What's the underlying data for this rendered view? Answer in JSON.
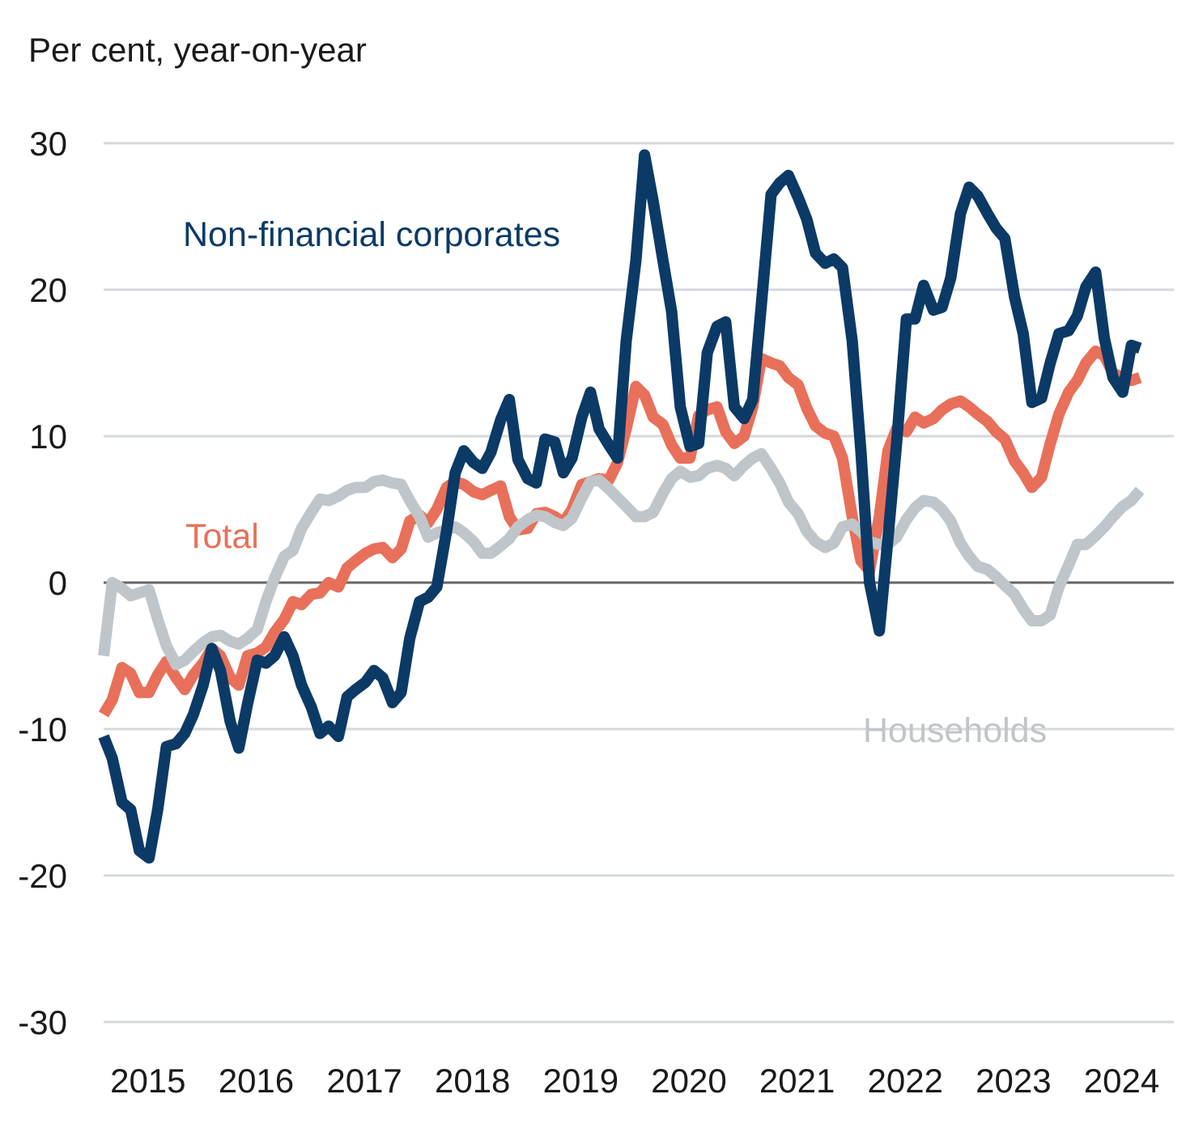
{
  "chart_data": {
    "type": "line",
    "title": "",
    "ylabel": "Per cent, year-on-year",
    "xlabel": "",
    "ylim": [
      -30,
      30
    ],
    "yticks": [
      30,
      20,
      10,
      0,
      -10,
      -20,
      -30
    ],
    "xlim": [
      2015,
      2024.99
    ],
    "xticks": [
      "2015",
      "2016",
      "2017",
      "2018",
      "2019",
      "2020",
      "2021",
      "2022",
      "2023",
      "2024"
    ],
    "grid": true,
    "legend": "inline labels",
    "series": [
      {
        "name": "Non-financial corporates",
        "color": "#0b3a66",
        "x": [
          2015.0,
          2015.08,
          2015.17,
          2015.25,
          2015.33,
          2015.42,
          2015.5,
          2015.58,
          2015.67,
          2015.75,
          2015.83,
          2015.92,
          2016.0,
          2016.08,
          2016.17,
          2016.25,
          2016.33,
          2016.42,
          2016.5,
          2016.58,
          2016.67,
          2016.75,
          2016.83,
          2016.92,
          2017.0,
          2017.08,
          2017.17,
          2017.25,
          2017.33,
          2017.42,
          2017.5,
          2017.58,
          2017.67,
          2017.75,
          2017.83,
          2017.92,
          2018.0,
          2018.08,
          2018.17,
          2018.25,
          2018.33,
          2018.42,
          2018.5,
          2018.58,
          2018.67,
          2018.75,
          2018.83,
          2018.92,
          2019.0,
          2019.08,
          2019.17,
          2019.25,
          2019.33,
          2019.42,
          2019.5,
          2019.58,
          2019.67,
          2019.75,
          2019.83,
          2019.92,
          2020.0,
          2020.08,
          2020.17,
          2020.25,
          2020.33,
          2020.42,
          2020.5,
          2020.58,
          2020.67,
          2020.75,
          2020.83,
          2020.92,
          2021.0,
          2021.08,
          2021.17,
          2021.25,
          2021.33,
          2021.42,
          2021.5,
          2021.58,
          2021.67,
          2021.75,
          2021.83,
          2021.92,
          2022.0,
          2022.08,
          2022.17,
          2022.25,
          2022.33,
          2022.42,
          2022.5,
          2022.58,
          2022.67,
          2022.75,
          2022.83,
          2022.92,
          2023.0,
          2023.08,
          2023.17,
          2023.25,
          2023.33,
          2023.42,
          2023.5,
          2023.58,
          2023.67,
          2023.75,
          2023.83,
          2023.92,
          2024.0,
          2024.08,
          2024.17,
          2024.25,
          2024.33,
          2024.42,
          2024.5,
          2024.58
        ],
        "values": [
          -10.5,
          -12,
          -15,
          -15.5,
          -18.3,
          -18.8,
          -15.5,
          -11.2,
          -11,
          -10.3,
          -9,
          -7,
          -4.5,
          -6,
          -9.5,
          -11.3,
          -8.3,
          -5.3,
          -5.5,
          -5,
          -3.7,
          -5,
          -7,
          -8.5,
          -10.3,
          -9.8,
          -10.5,
          -7.8,
          -7.3,
          -6.8,
          -6.0,
          -6.5,
          -8.2,
          -7.5,
          -3.8,
          -1.3,
          -1,
          -0.3,
          3.5,
          7.5,
          9.0,
          8.2,
          7.8,
          8.9,
          11.1,
          12.5,
          8.4,
          7.1,
          6.8,
          9.8,
          9.6,
          7.5,
          8.5,
          11.3,
          13.0,
          10.5,
          9.4,
          8.5,
          16.5,
          22.0,
          29.2,
          26,
          22,
          18.5,
          12.0,
          9.3,
          9.5,
          15.7,
          17.5,
          17.8,
          12.0,
          11.2,
          12.5,
          19,
          26.5,
          27.3,
          27.8,
          26.3,
          24.8,
          22.5,
          21.8,
          22.1,
          21.5,
          16.5,
          9,
          0,
          -3.3,
          3,
          9.5,
          18,
          18,
          20.3,
          18.6,
          18.8,
          20.8,
          25.2,
          27,
          26.4,
          25.2,
          24.2,
          23.5,
          19.5,
          17,
          12.3,
          12.6,
          15.0,
          17.0,
          17.2,
          18.2,
          20.2,
          21.2,
          16.7,
          14.0,
          13.0,
          16.2,
          16.0
        ]
      },
      {
        "name": "Total",
        "color": "#e8705a",
        "x": [
          2015.0,
          2015.08,
          2015.17,
          2015.25,
          2015.33,
          2015.42,
          2015.5,
          2015.58,
          2015.67,
          2015.75,
          2015.83,
          2015.92,
          2016.0,
          2016.08,
          2016.17,
          2016.25,
          2016.33,
          2016.42,
          2016.5,
          2016.58,
          2016.67,
          2016.75,
          2016.83,
          2016.92,
          2017.0,
          2017.08,
          2017.17,
          2017.25,
          2017.33,
          2017.42,
          2017.5,
          2017.58,
          2017.67,
          2017.75,
          2017.83,
          2017.92,
          2018.0,
          2018.08,
          2018.17,
          2018.25,
          2018.33,
          2018.42,
          2018.5,
          2018.58,
          2018.67,
          2018.75,
          2018.83,
          2018.92,
          2019.0,
          2019.08,
          2019.17,
          2019.25,
          2019.33,
          2019.42,
          2019.5,
          2019.58,
          2019.67,
          2019.75,
          2019.83,
          2019.92,
          2020.0,
          2020.08,
          2020.17,
          2020.25,
          2020.33,
          2020.42,
          2020.5,
          2020.58,
          2020.67,
          2020.75,
          2020.83,
          2020.92,
          2021.0,
          2021.08,
          2021.17,
          2021.25,
          2021.33,
          2021.42,
          2021.5,
          2021.58,
          2021.67,
          2021.75,
          2021.83,
          2021.92,
          2022.0,
          2022.08,
          2022.17,
          2022.25,
          2022.33,
          2022.42,
          2022.5,
          2022.58,
          2022.67,
          2022.75,
          2022.83,
          2022.92,
          2023.0,
          2023.08,
          2023.17,
          2023.25,
          2023.33,
          2023.42,
          2023.5,
          2023.58,
          2023.67,
          2023.75,
          2023.83,
          2023.92,
          2024.0,
          2024.08,
          2024.17,
          2024.25,
          2024.33,
          2024.42,
          2024.5,
          2024.58
        ],
        "values": [
          -9,
          -8,
          -5.8,
          -6.2,
          -7.5,
          -7.5,
          -6.3,
          -5.4,
          -6.5,
          -7.3,
          -6.3,
          -5.5,
          -4.5,
          -5,
          -6.5,
          -7,
          -5,
          -4.8,
          -4.4,
          -3.4,
          -2.5,
          -1.3,
          -1.5,
          -0.8,
          -0.7,
          0.0,
          -0.3,
          1,
          1.5,
          2,
          2.3,
          2.4,
          1.7,
          2.3,
          4.2,
          4.6,
          4.1,
          5,
          6.5,
          6.9,
          6.7,
          6.2,
          6.0,
          6.3,
          6.6,
          4.5,
          3.6,
          3.7,
          4.7,
          4.8,
          4.5,
          4.1,
          5,
          6.7,
          6.9,
          7.1,
          7,
          8.2,
          10.5,
          13.4,
          12.8,
          11.3,
          10.8,
          9.4,
          8.5,
          8.5,
          11.4,
          11.8,
          12.0,
          10.3,
          9.5,
          10.0,
          12,
          15.3,
          15.0,
          14.8,
          14.0,
          13.5,
          11.9,
          10.7,
          10.2,
          10.0,
          8.5,
          4.5,
          1.5,
          0.8,
          4.5,
          9,
          10.5,
          10.3,
          11.3,
          10.9,
          11.2,
          11.8,
          12.2,
          12.4,
          12.0,
          11.5,
          11.0,
          10.3,
          9.8,
          8.3,
          7.5,
          6.5,
          7.2,
          9.5,
          11.5,
          13.0,
          13.8,
          15.0,
          15.8,
          15.5,
          14.3,
          14.0,
          13.8,
          14.0
        ]
      },
      {
        "name": "Households",
        "color": "#bfc5c9",
        "x": [
          2015.0,
          2015.08,
          2015.17,
          2015.25,
          2015.33,
          2015.42,
          2015.5,
          2015.58,
          2015.67,
          2015.75,
          2015.83,
          2015.92,
          2016.0,
          2016.08,
          2016.17,
          2016.25,
          2016.33,
          2016.42,
          2016.5,
          2016.58,
          2016.67,
          2016.75,
          2016.83,
          2016.92,
          2017.0,
          2017.08,
          2017.17,
          2017.25,
          2017.33,
          2017.42,
          2017.5,
          2017.58,
          2017.67,
          2017.75,
          2017.83,
          2017.92,
          2018.0,
          2018.08,
          2018.17,
          2018.25,
          2018.33,
          2018.42,
          2018.5,
          2018.58,
          2018.67,
          2018.75,
          2018.83,
          2018.92,
          2019.0,
          2019.08,
          2019.17,
          2019.25,
          2019.33,
          2019.42,
          2019.5,
          2019.58,
          2019.67,
          2019.75,
          2019.83,
          2019.92,
          2020.0,
          2020.08,
          2020.17,
          2020.25,
          2020.33,
          2020.42,
          2020.5,
          2020.58,
          2020.67,
          2020.75,
          2020.83,
          2020.92,
          2021.0,
          2021.08,
          2021.17,
          2021.25,
          2021.33,
          2021.42,
          2021.5,
          2021.58,
          2021.67,
          2021.75,
          2021.83,
          2021.92,
          2022.0,
          2022.08,
          2022.17,
          2022.25,
          2022.33,
          2022.42,
          2022.5,
          2022.58,
          2022.67,
          2022.75,
          2022.83,
          2022.92,
          2023.0,
          2023.08,
          2023.17,
          2023.25,
          2023.33,
          2023.42,
          2023.5,
          2023.58,
          2023.67,
          2023.75,
          2023.83,
          2023.92,
          2024.0,
          2024.08,
          2024.17,
          2024.25,
          2024.33,
          2024.42,
          2024.5,
          2024.58
        ],
        "values": [
          -5,
          0,
          -0.4,
          -0.9,
          -0.7,
          -0.5,
          -2.5,
          -4.3,
          -5.6,
          -5.3,
          -4.7,
          -4.1,
          -3.7,
          -3.6,
          -4.0,
          -4.2,
          -3.8,
          -3.2,
          -1.3,
          0.3,
          1.8,
          2.2,
          3.7,
          4.8,
          5.7,
          5.6,
          5.9,
          6.3,
          6.5,
          6.5,
          6.9,
          7.0,
          6.8,
          6.7,
          5.6,
          4.5,
          3.1,
          3.4,
          3.6,
          3.8,
          3.4,
          2.8,
          2.0,
          2.0,
          2.5,
          3.0,
          3.8,
          4.3,
          4.6,
          4.5,
          4.1,
          3.9,
          4.4,
          5.8,
          6.9,
          7.0,
          6.4,
          5.8,
          5.2,
          4.5,
          4.5,
          4.8,
          6.1,
          7.1,
          7.6,
          7.2,
          7.3,
          7.8,
          8.0,
          7.8,
          7.3,
          8.0,
          8.5,
          8.8,
          7.8,
          6.8,
          5.5,
          4.7,
          3.5,
          2.8,
          2.4,
          2.7,
          3.8,
          4.0,
          3.5,
          2.8,
          2.6,
          2.6,
          3.1,
          4.3,
          5.1,
          5.6,
          5.5,
          5.0,
          4.2,
          2.7,
          1.8,
          1.1,
          0.9,
          0.4,
          -0.2,
          -0.8,
          -1.8,
          -2.6,
          -2.6,
          -2.2,
          -0.3,
          1.2,
          2.6,
          2.6,
          3.2,
          3.8,
          4.5,
          5.2,
          5.6,
          6.3
        ]
      }
    ],
    "annotations": [
      {
        "text": "Non-financial corporates",
        "series": "Non-financial corporates"
      },
      {
        "text": "Total",
        "series": "Total"
      },
      {
        "text": "Households",
        "series": "Households"
      }
    ]
  }
}
